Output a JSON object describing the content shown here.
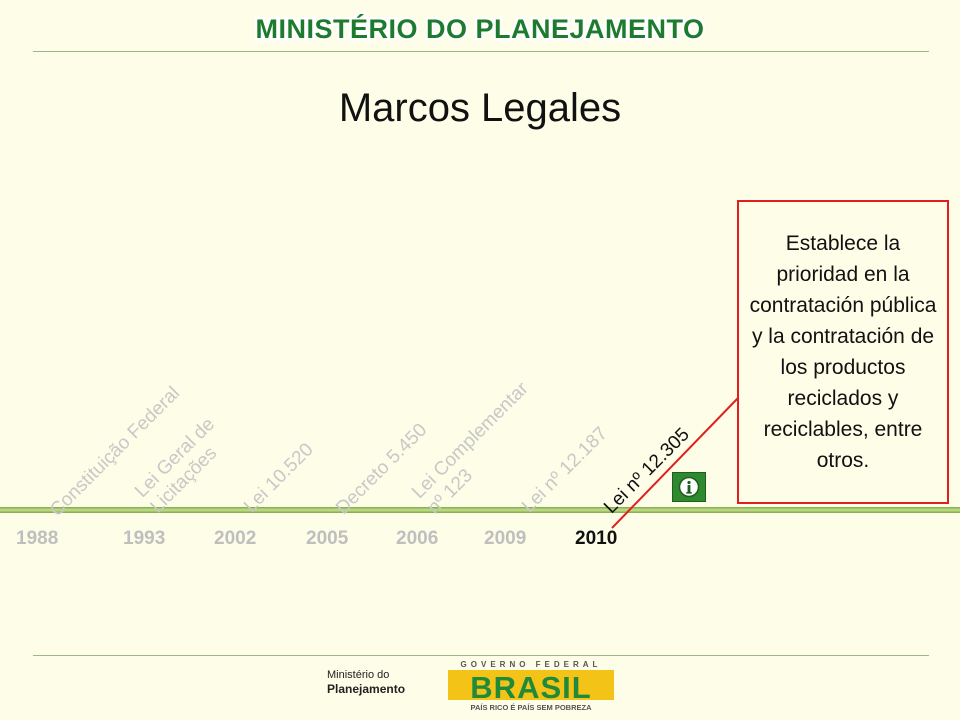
{
  "header": {
    "ministry": "MINISTÉRIO DO PLANEJAMENTO"
  },
  "slide": {
    "title": "Marcos Legales"
  },
  "timeline": {
    "years": [
      "1988",
      "1993",
      "2002",
      "2005",
      "2006",
      "2009",
      "2010"
    ],
    "active_year": "2010",
    "laws": [
      {
        "lines": [
          "Constituição Federal"
        ]
      },
      {
        "lines": [
          "Lei Geral de",
          "Licitações"
        ]
      },
      {
        "lines": [
          "Lei 10.520"
        ]
      },
      {
        "lines": [
          "Decreto 5.450"
        ]
      },
      {
        "lines": [
          "Lei Complementar",
          "nº 123"
        ]
      },
      {
        "lines": [
          "Lei nº 12.187"
        ]
      },
      {
        "lines": [
          "Lei nº 12.305"
        ]
      }
    ]
  },
  "callout": {
    "text": "Establece la prioridad en la contratación pública y la contratación de los productos reciclados y reciclables, entre otros."
  },
  "footer": {
    "ministry_logo": {
      "line1": "Ministério do",
      "line2": "Planejamento"
    },
    "government_logo": {
      "top": "GOVERNO FEDERAL",
      "word": "BRASIL",
      "tagline": "PAÍS RICO É PAÍS SEM POBREZA"
    }
  },
  "colors": {
    "accent_green": "#1e7b2e",
    "callout_border": "#e02020",
    "inactive_text": "#c8c8c8"
  },
  "icons": {
    "info": "info-icon"
  }
}
